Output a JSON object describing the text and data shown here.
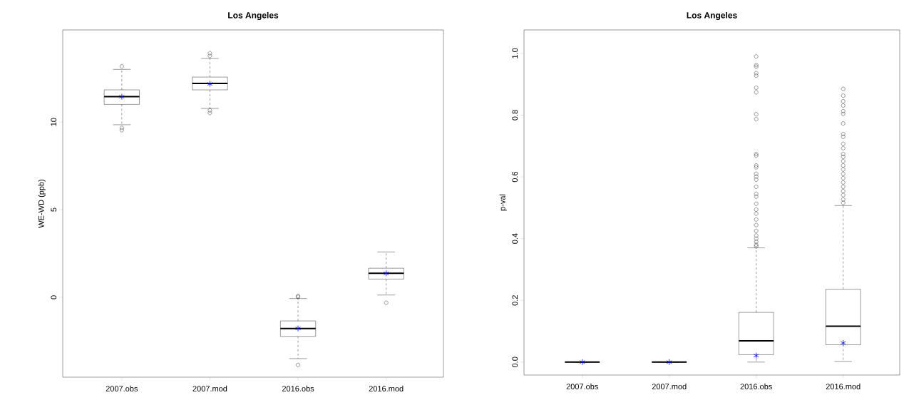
{
  "chart_data": [
    {
      "type": "box",
      "title": "Los Angeles",
      "ylabel": "WE-WD (ppb)",
      "categories": [
        "2007.obs",
        "2007.mod",
        "2016.obs",
        "2016.mod"
      ],
      "ylim": [
        -4.56,
        15.26
      ],
      "yticks": [
        0,
        5,
        10
      ],
      "boxes": [
        {
          "low": 9.85,
          "q1": 11.01,
          "median": 11.45,
          "q3": 11.84,
          "high": 13.01,
          "mean": 11.45,
          "outliers": [
            13.18,
            9.67,
            9.54
          ]
        },
        {
          "low": 10.78,
          "q1": 11.84,
          "median": 12.21,
          "q3": 12.57,
          "high": 13.63,
          "mean": 12.18,
          "outliers": [
            13.93,
            13.78,
            10.67,
            10.52
          ]
        },
        {
          "low": -3.5,
          "q1": -2.23,
          "median": -1.78,
          "q3": -1.35,
          "high": -0.07,
          "mean": -1.78,
          "outliers": [
            0.07,
            0.02,
            -3.86
          ]
        },
        {
          "low": 0.13,
          "q1": 1.04,
          "median": 1.37,
          "q3": 1.66,
          "high": 2.59,
          "mean": 1.37,
          "outliers": [
            -0.31
          ]
        }
      ]
    },
    {
      "type": "box",
      "title": "Los Angeles",
      "ylabel": "p-val",
      "categories": [
        "2007.obs",
        "2007.mod",
        "2016.obs",
        "2016.mod"
      ],
      "ylim": [
        -0.042,
        1.076
      ],
      "yticks": [
        {
          "value": 0,
          "label": "0.0"
        },
        {
          "value": 0.2,
          "label": "0.2"
        },
        {
          "value": 0.4,
          "label": "0.4"
        },
        {
          "value": 0.6,
          "label": "0.6"
        },
        {
          "value": 0.8,
          "label": "0.8"
        },
        {
          "value": 1,
          "label": "1.0"
        }
      ],
      "boxes": [
        {
          "low": 0,
          "q1": 0,
          "median": 0,
          "q3": 0,
          "high": 0,
          "mean": 0
        },
        {
          "low": 0,
          "q1": 0,
          "median": 0,
          "q3": 0,
          "high": 0,
          "mean": 0
        },
        {
          "low": 0,
          "q1": 0.024,
          "median": 0.069,
          "q3": 0.161,
          "high": 0.37,
          "mean": 0.021,
          "outliers": [
            0.375,
            0.38,
            0.39,
            0.4,
            0.41,
            0.425,
            0.444,
            0.462,
            0.481,
            0.494,
            0.513,
            0.536,
            0.545,
            0.568,
            0.591,
            0.601,
            0.61,
            0.631,
            0.637,
            0.669,
            0.674,
            0.787,
            0.803,
            0.874,
            0.889,
            0.928,
            0.936,
            0.957,
            0.962,
            0.99
          ]
        },
        {
          "low": 0.002,
          "q1": 0.056,
          "median": 0.116,
          "q3": 0.236,
          "high": 0.507,
          "mean": 0.062,
          "outliers": [
            0.516,
            0.527,
            0.541,
            0.554,
            0.568,
            0.582,
            0.596,
            0.61,
            0.624,
            0.637,
            0.651,
            0.665,
            0.674,
            0.693,
            0.707,
            0.73,
            0.739,
            0.773,
            0.804,
            0.813,
            0.831,
            0.845,
            0.863,
            0.885
          ]
        }
      ]
    }
  ]
}
